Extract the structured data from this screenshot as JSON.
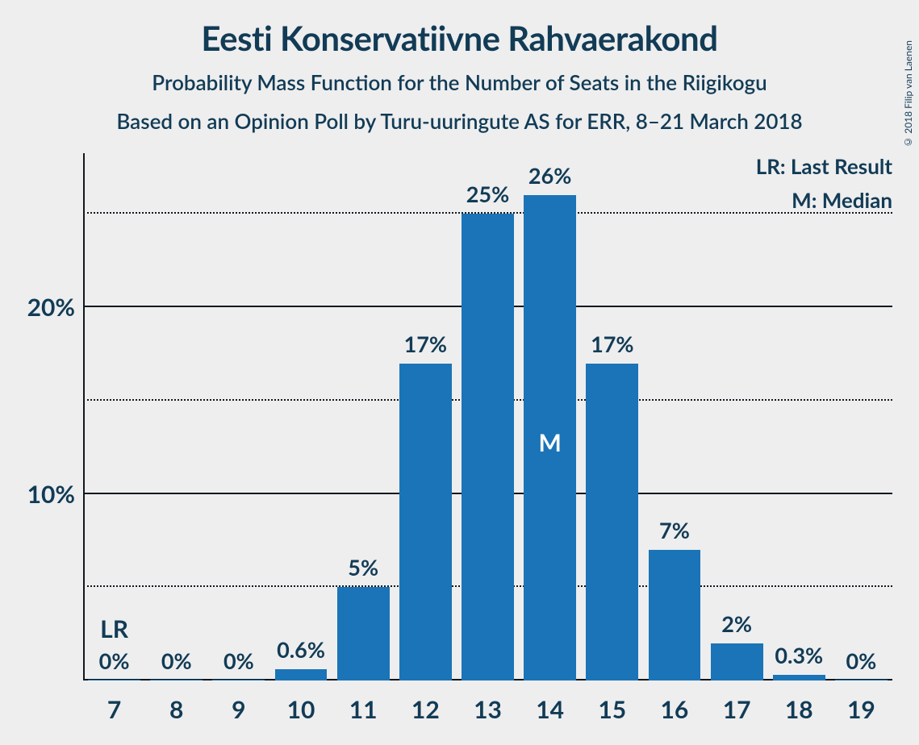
{
  "title": "Eesti Konservatiivne Rahvaerakond",
  "subtitle1": "Probability Mass Function for the Number of Seats in the Riigikogu",
  "subtitle2": "Based on an Opinion Poll by Turu-uuringute AS for ERR, 8–21 March 2018",
  "copyright": "© 2018 Filip van Laenen",
  "legend": {
    "lr": "LR: Last Result",
    "m": "M: Median"
  },
  "chart": {
    "type": "bar",
    "background_color": "#eeeeef",
    "bar_color": "#1a74b7",
    "text_color": "#123b55",
    "axis_color": "#10181f",
    "grid_color": "#10181f",
    "y_min": 0,
    "y_max": 28,
    "y_major_ticks": [
      10,
      20
    ],
    "y_minor_ticks": [
      5,
      15,
      25
    ],
    "y_tick_labels": {
      "10": "10%",
      "20": "20%"
    },
    "title_fontsize": 42,
    "subtitle_fontsize": 26,
    "label_fontsize": 27,
    "xlabel_fontsize": 30,
    "ylabel_fontsize": 30,
    "bar_width_ratio": 0.84,
    "categories": [
      "7",
      "8",
      "9",
      "10",
      "11",
      "12",
      "13",
      "14",
      "15",
      "16",
      "17",
      "18",
      "19"
    ],
    "values": [
      0,
      0,
      0,
      0.6,
      5,
      17,
      25,
      26,
      17,
      7,
      2,
      0.3,
      0
    ],
    "value_labels": [
      "0%",
      "0%",
      "0%",
      "0.6%",
      "5%",
      "17%",
      "25%",
      "26%",
      "17%",
      "7%",
      "2%",
      "0.3%",
      "0%"
    ],
    "lr_index": 0,
    "lr_text": "LR",
    "median_index": 7,
    "median_text": "M",
    "median_text_color": "#ffffff"
  }
}
